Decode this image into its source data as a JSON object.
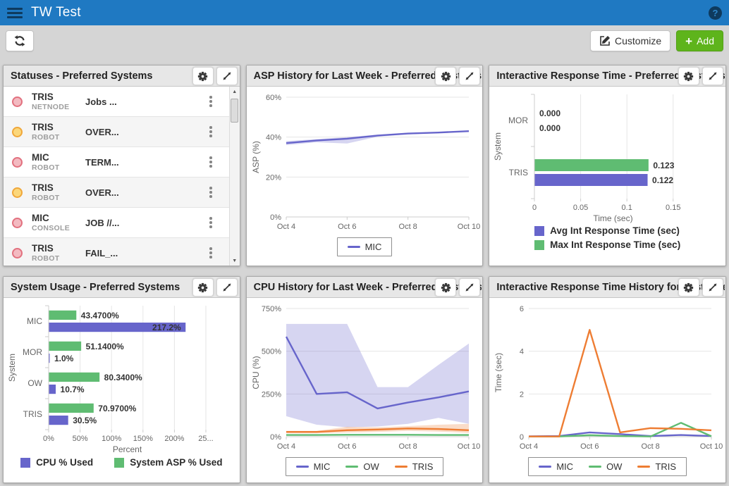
{
  "header": {
    "title": "TW Test"
  },
  "toolbar": {
    "customize_label": "Customize",
    "add_label": "Add"
  },
  "colors": {
    "header_blue": "#1f79c2",
    "purple": "#6765cb",
    "green": "#5fbc72",
    "orange": "#ee7d33",
    "add_green": "#5eb41c"
  },
  "status_colors": {
    "red": {
      "fill": "#f3bac1",
      "border": "#e2717f"
    },
    "yellow": {
      "fill": "#fbd77b",
      "border": "#f0a73a"
    }
  },
  "panels": {
    "statuses": {
      "title": "Statuses - Preferred Systems",
      "rows": [
        {
          "system": "TRIS",
          "subsystem": "NETNODE",
          "message": "Jobs ...",
          "status": "red"
        },
        {
          "system": "TRIS",
          "subsystem": "ROBOT",
          "message": "OVER...",
          "status": "yellow"
        },
        {
          "system": "MIC",
          "subsystem": "ROBOT",
          "message": "TERM...",
          "status": "red"
        },
        {
          "system": "TRIS",
          "subsystem": "ROBOT",
          "message": "OVER...",
          "status": "yellow"
        },
        {
          "system": "MIC",
          "subsystem": "CONSOLE",
          "message": "JOB //...",
          "status": "red"
        },
        {
          "system": "TRIS",
          "subsystem": "ROBOT",
          "message": "FAIL_...",
          "status": "red"
        }
      ]
    },
    "asp_history": {
      "title": "ASP History for Last Week - Preferred Systems"
    },
    "int_response": {
      "title": "Interactive Response Time - Preferred Systems"
    },
    "system_usage": {
      "title": "System Usage - Preferred Systems"
    },
    "cpu_history": {
      "title": "CPU History for Last Week - Preferred Systems"
    },
    "int_response_history": {
      "title": "Interactive Response Time History for Last Week - Preferred Systems"
    }
  },
  "chart_data": [
    {
      "id": "asp_history",
      "type": "line",
      "ylabel": "ASP (%)",
      "ylim": [
        0,
        60
      ],
      "yticks": [
        0,
        20,
        40,
        60
      ],
      "ytick_suffix": "%",
      "x": [
        "Oct 4",
        "Oct 5",
        "Oct 6",
        "Oct 7",
        "Oct 8",
        "Oct 9",
        "Oct 10"
      ],
      "xtick_indices": [
        0,
        2,
        4,
        6
      ],
      "legend_style": "box",
      "series": [
        {
          "name": "MIC",
          "color": "#6765cb",
          "values": [
            37,
            38.3,
            39.2,
            40.8,
            41.8,
            42.3,
            43
          ],
          "band_upper": [
            38,
            39,
            40,
            41.2,
            42,
            42.5,
            43.2
          ],
          "band_lower": [
            36,
            37.4,
            36.8,
            40.2,
            41.4,
            42,
            42.8
          ]
        }
      ]
    },
    {
      "id": "int_response",
      "type": "hbar",
      "xlabel": "Time (sec)",
      "ylabel": "System",
      "categories": [
        "MOR",
        "TRIS"
      ],
      "xlim": [
        0,
        0.17
      ],
      "xticks": [
        0,
        0.05,
        0.1,
        0.15
      ],
      "xtick_labels": [
        "0",
        "0.05",
        "0.1",
        "0.15"
      ],
      "legend_style": "swatch",
      "legend_block": true,
      "series": [
        {
          "name": "Avg Int Response Time (sec)",
          "color": "#6765cb",
          "values": [
            0,
            0.122
          ],
          "labels": [
            "0.000",
            "0.122"
          ]
        },
        {
          "name": "Max Int Response Time (sec)",
          "color": "#5fbc72",
          "values": [
            0,
            0.123
          ],
          "labels": [
            "0.000",
            "0.123"
          ]
        }
      ]
    },
    {
      "id": "system_usage",
      "type": "hbar",
      "xlabel": "Percent",
      "ylabel": "System",
      "categories": [
        "MIC",
        "MOR",
        "OW",
        "TRIS"
      ],
      "xlim": [
        0,
        250
      ],
      "xticks": [
        0,
        50,
        100,
        150,
        200,
        250
      ],
      "xtick_labels": [
        "0%",
        "50%",
        "100%",
        "150%",
        "200%",
        "25..."
      ],
      "legend_style": "swatch",
      "series": [
        {
          "name": "CPU % Used",
          "color": "#6765cb",
          "values": [
            217.2,
            1.0,
            10.7,
            30.5
          ],
          "labels": [
            "217.2%",
            "1.0%",
            "10.7%",
            "30.5%"
          ]
        },
        {
          "name": "System ASP % Used",
          "color": "#5fbc72",
          "values": [
            43.47,
            51.14,
            80.34,
            70.97
          ],
          "labels": [
            "43.4700%",
            "51.1400%",
            "80.3400%",
            "70.9700%"
          ]
        }
      ]
    },
    {
      "id": "cpu_history",
      "type": "line",
      "ylabel": "CPU (%)",
      "ylim": [
        0,
        750
      ],
      "yticks": [
        0,
        250,
        500,
        750
      ],
      "ytick_suffix": "%",
      "x": [
        "Oct 4",
        "Oct 5",
        "Oct 6",
        "Oct 7",
        "Oct 8",
        "Oct 9",
        "Oct 10"
      ],
      "xtick_indices": [
        0,
        2,
        4,
        6
      ],
      "legend_style": "box",
      "series": [
        {
          "name": "MIC",
          "color": "#6765cb",
          "values": [
            585,
            250,
            260,
            165,
            200,
            230,
            265
          ],
          "band_upper": [
            660,
            660,
            660,
            290,
            290,
            420,
            545
          ],
          "band_lower": [
            120,
            70,
            55,
            60,
            75,
            110,
            75
          ]
        },
        {
          "name": "OW",
          "color": "#5fbc72",
          "values": [
            10,
            10,
            11,
            11,
            11,
            10,
            10
          ]
        },
        {
          "name": "TRIS",
          "color": "#ee7d33",
          "values": [
            28,
            28,
            38,
            42,
            48,
            45,
            38
          ],
          "band_upper": [
            34,
            34,
            58,
            55,
            62,
            70,
            75
          ],
          "band_lower": [
            20,
            20,
            24,
            28,
            34,
            30,
            22
          ]
        }
      ]
    },
    {
      "id": "int_response_history",
      "type": "line",
      "ylabel": "Time (sec)",
      "ylim": [
        0,
        6
      ],
      "yticks": [
        0,
        2,
        4,
        6
      ],
      "ytick_suffix": "",
      "x": [
        "Oct 4",
        "Oct 5",
        "Oct 6",
        "Oct 7",
        "Oct 8",
        "Oct 9",
        "Oct 10"
      ],
      "xtick_indices": [
        0,
        2,
        4,
        6
      ],
      "legend_style": "box",
      "series": [
        {
          "name": "MIC",
          "color": "#6765cb",
          "values": [
            0.02,
            0.03,
            0.2,
            0.12,
            0.03,
            0.08,
            0.03
          ]
        },
        {
          "name": "OW",
          "color": "#5fbc72",
          "values": [
            0.01,
            0.01,
            0.07,
            0.03,
            0.01,
            0.65,
            0.02
          ]
        },
        {
          "name": "TRIS",
          "color": "#ee7d33",
          "values": [
            0.01,
            0.01,
            5.0,
            0.2,
            0.4,
            0.37,
            0.3
          ]
        }
      ]
    }
  ]
}
